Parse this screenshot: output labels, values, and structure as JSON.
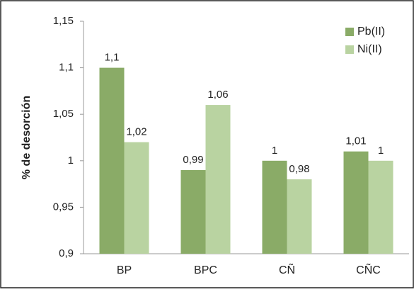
{
  "chart_data": {
    "type": "bar",
    "y_label": "% de desorción",
    "categories": [
      "BP",
      "BPC",
      "CÑ",
      "CÑC"
    ],
    "series": [
      {
        "name": "Pb(II)",
        "color": "#8aab67",
        "values": [
          1.1,
          0.99,
          1.0,
          1.01
        ],
        "value_labels": [
          "1,1",
          "0,99",
          "1",
          "1,01"
        ]
      },
      {
        "name": "Ni(II)",
        "color": "#b9d3a1",
        "values": [
          1.02,
          1.06,
          0.98,
          1.0
        ],
        "value_labels": [
          "1,02",
          "1,06",
          "0,98",
          "1"
        ]
      }
    ],
    "ylim": [
      0.9,
      1.15
    ],
    "yticks": [
      {
        "value": 0.9,
        "label": "0,9"
      },
      {
        "value": 0.95,
        "label": "0,95"
      },
      1,
      {
        "value": 1.05,
        "label": "1,05"
      },
      {
        "value": 1.1,
        "label": "1,1"
      },
      {
        "value": 1.15,
        "label": "1,15"
      }
    ],
    "grid": false,
    "legend": "top-right"
  }
}
